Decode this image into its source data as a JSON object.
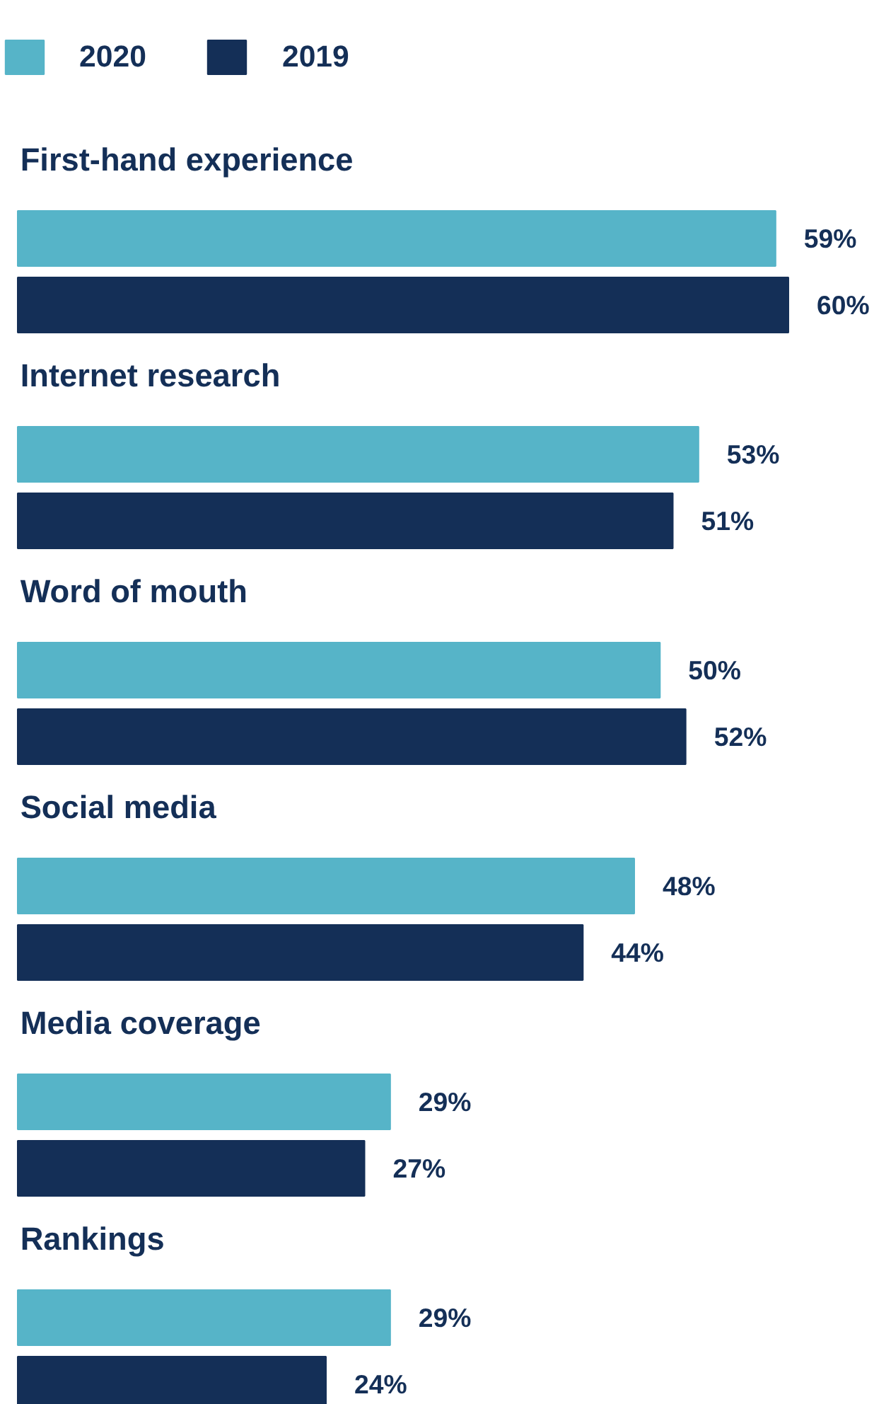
{
  "chart_data": {
    "type": "bar",
    "orientation": "horizontal",
    "legend": "top left",
    "categories": [
      "First-hand experience",
      "Internet research",
      "Word of mouth",
      "Social media",
      "Media coverage",
      "Rankings"
    ],
    "series": [
      {
        "name": "2020",
        "color": "#56b4c8",
        "values": [
          59,
          53,
          50,
          48,
          29,
          29
        ],
        "value_labels": [
          "59%",
          "53%",
          "50%",
          "48%",
          "29%",
          "29%"
        ]
      },
      {
        "name": "2019",
        "color": "#142f57",
        "values": [
          60,
          51,
          52,
          44,
          27,
          24
        ],
        "value_labels": [
          "60%",
          "51%",
          "52%",
          "44%",
          "27%",
          "24%"
        ]
      }
    ]
  }
}
